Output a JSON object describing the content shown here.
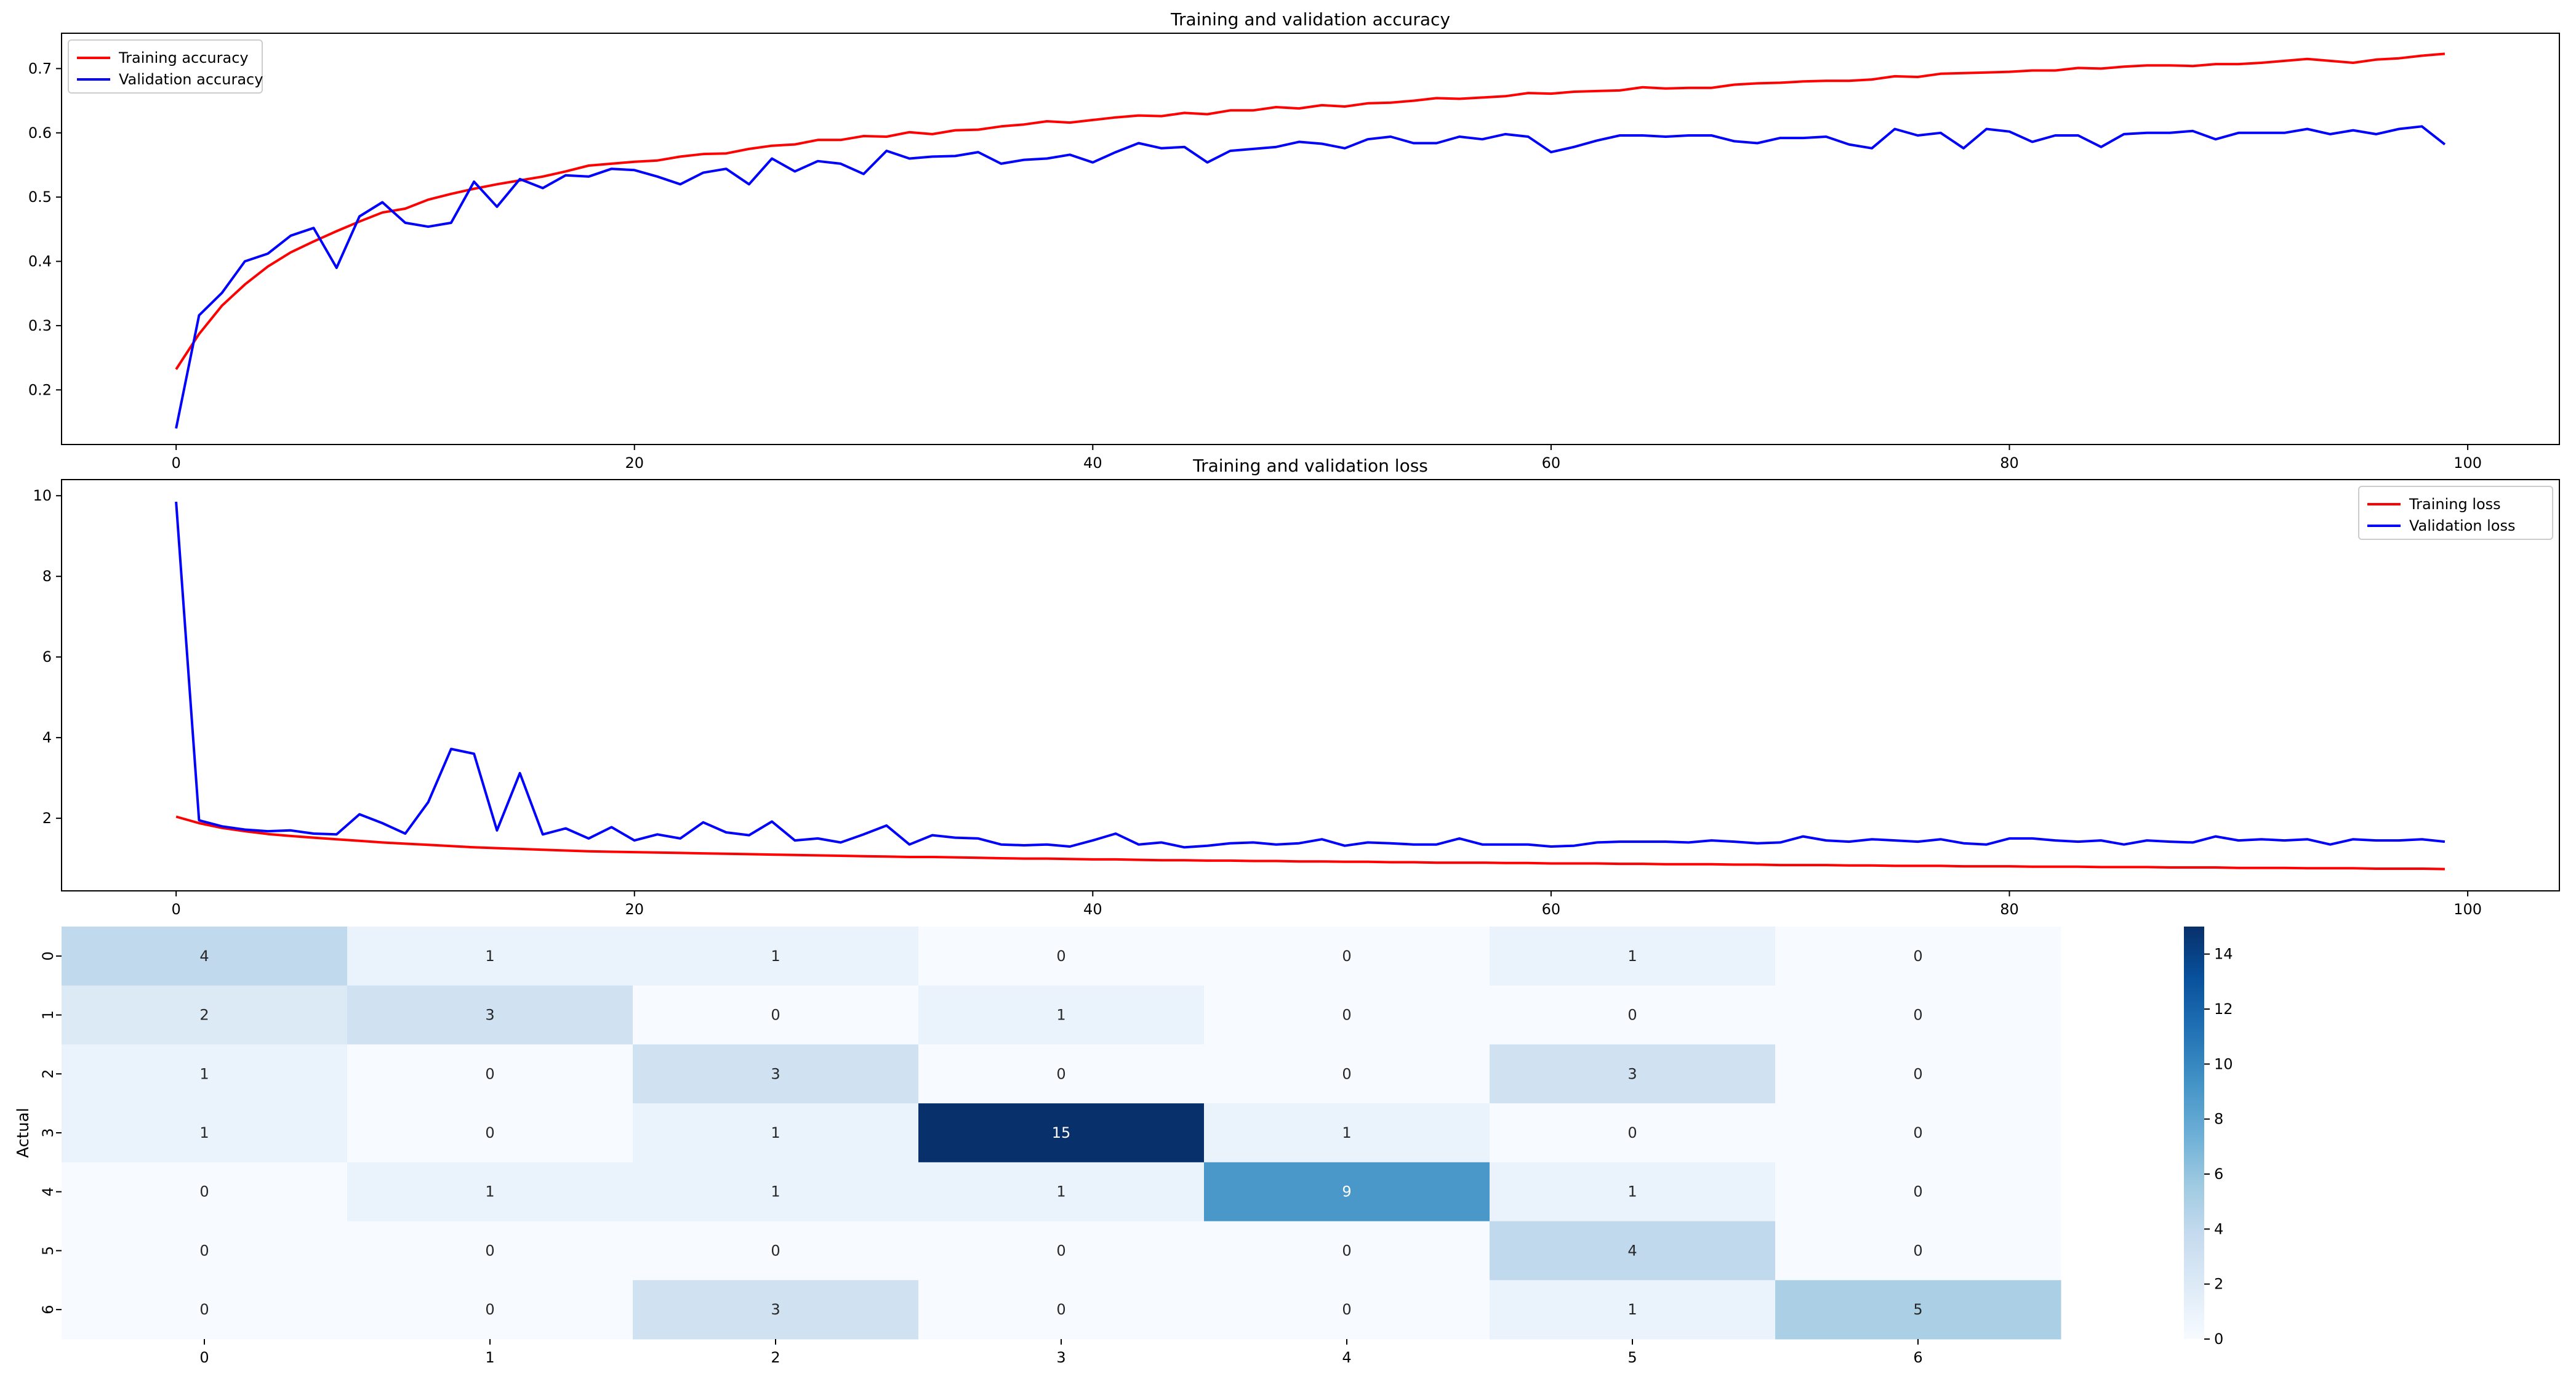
{
  "chart_data": [
    {
      "type": "line",
      "title": "Training and validation accuracy",
      "xlim": [
        -5,
        104
      ],
      "ylim": [
        0.115,
        0.755
      ],
      "xticks": [
        0,
        20,
        40,
        60,
        80,
        100
      ],
      "yticks": [
        0.2,
        0.3,
        0.4,
        0.5,
        0.6,
        0.7
      ],
      "xtick_labels": [
        "0",
        "20",
        "40",
        "60",
        "80",
        "100"
      ],
      "ytick_labels": [
        "0.2",
        "0.3",
        "0.4",
        "0.5",
        "0.6",
        "0.7"
      ],
      "legend_position": "top-left",
      "series": [
        {
          "name": "Training accuracy",
          "color": "#ff0000",
          "values": [
            0.232,
            0.287,
            0.331,
            0.364,
            0.392,
            0.414,
            0.431,
            0.447,
            0.462,
            0.476,
            0.482,
            0.496,
            0.505,
            0.513,
            0.52,
            0.526,
            0.532,
            0.54,
            0.549,
            0.552,
            0.555,
            0.557,
            0.563,
            0.567,
            0.568,
            0.575,
            0.58,
            0.582,
            0.589,
            0.589,
            0.595,
            0.594,
            0.601,
            0.598,
            0.604,
            0.605,
            0.61,
            0.613,
            0.618,
            0.616,
            0.62,
            0.624,
            0.627,
            0.626,
            0.631,
            0.629,
            0.635,
            0.635,
            0.64,
            0.638,
            0.643,
            0.641,
            0.646,
            0.647,
            0.65,
            0.654,
            0.653,
            0.655,
            0.657,
            0.662,
            0.661,
            0.664,
            0.665,
            0.666,
            0.671,
            0.669,
            0.67,
            0.67,
            0.675,
            0.677,
            0.678,
            0.68,
            0.681,
            0.681,
            0.683,
            0.688,
            0.687,
            0.692,
            0.693,
            0.694,
            0.695,
            0.697,
            0.697,
            0.701,
            0.7,
            0.703,
            0.705,
            0.705,
            0.704,
            0.707,
            0.707,
            0.709,
            0.712,
            0.715,
            0.712,
            0.709,
            0.714,
            0.716,
            0.72,
            0.723
          ]
        },
        {
          "name": "Validation accuracy",
          "color": "#0000ff",
          "values": [
            0.14,
            0.316,
            0.351,
            0.4,
            0.412,
            0.44,
            0.452,
            0.39,
            0.47,
            0.492,
            0.46,
            0.454,
            0.46,
            0.524,
            0.485,
            0.528,
            0.514,
            0.534,
            0.532,
            0.544,
            0.542,
            0.532,
            0.52,
            0.538,
            0.544,
            0.52,
            0.56,
            0.54,
            0.556,
            0.552,
            0.536,
            0.572,
            0.56,
            0.563,
            0.564,
            0.57,
            0.552,
            0.558,
            0.56,
            0.566,
            0.554,
            0.57,
            0.584,
            0.576,
            0.578,
            0.554,
            0.572,
            0.575,
            0.578,
            0.586,
            0.583,
            0.576,
            0.59,
            0.594,
            0.584,
            0.584,
            0.594,
            0.59,
            0.598,
            0.594,
            0.57,
            0.578,
            0.588,
            0.596,
            0.596,
            0.594,
            0.596,
            0.596,
            0.587,
            0.584,
            0.592,
            0.592,
            0.594,
            0.582,
            0.576,
            0.606,
            0.596,
            0.6,
            0.576,
            0.606,
            0.602,
            0.586,
            0.596,
            0.596,
            0.578,
            0.598,
            0.6,
            0.6,
            0.603,
            0.59,
            0.6,
            0.6,
            0.6,
            0.606,
            0.598,
            0.604,
            0.598,
            0.606,
            0.61,
            0.582
          ]
        }
      ]
    },
    {
      "type": "line",
      "title": "Training and validation loss",
      "xlim": [
        -5,
        104
      ],
      "ylim": [
        0.2,
        10.4
      ],
      "xticks": [
        0,
        20,
        40,
        60,
        80,
        100
      ],
      "yticks": [
        2,
        4,
        6,
        8,
        10
      ],
      "xtick_labels": [
        "0",
        "20",
        "40",
        "60",
        "80",
        "100"
      ],
      "ytick_labels": [
        "2",
        "4",
        "6",
        "8",
        "10"
      ],
      "legend_position": "top-right",
      "series": [
        {
          "name": "Training loss",
          "color": "#ff0000",
          "values": [
            2.04,
            1.88,
            1.76,
            1.68,
            1.61,
            1.56,
            1.52,
            1.48,
            1.44,
            1.4,
            1.37,
            1.34,
            1.31,
            1.28,
            1.26,
            1.24,
            1.22,
            1.2,
            1.18,
            1.17,
            1.16,
            1.15,
            1.14,
            1.13,
            1.12,
            1.11,
            1.1,
            1.09,
            1.08,
            1.07,
            1.06,
            1.05,
            1.04,
            1.04,
            1.03,
            1.02,
            1.01,
            1.0,
            1.0,
            0.99,
            0.98,
            0.98,
            0.97,
            0.96,
            0.96,
            0.95,
            0.95,
            0.94,
            0.94,
            0.93,
            0.93,
            0.92,
            0.92,
            0.91,
            0.91,
            0.9,
            0.9,
            0.9,
            0.89,
            0.89,
            0.88,
            0.88,
            0.88,
            0.87,
            0.87,
            0.86,
            0.86,
            0.86,
            0.85,
            0.85,
            0.84,
            0.84,
            0.84,
            0.83,
            0.83,
            0.82,
            0.82,
            0.82,
            0.81,
            0.81,
            0.81,
            0.8,
            0.8,
            0.8,
            0.79,
            0.79,
            0.79,
            0.78,
            0.78,
            0.78,
            0.77,
            0.77,
            0.77,
            0.76,
            0.76,
            0.76,
            0.75,
            0.75,
            0.75,
            0.74
          ]
        },
        {
          "name": "Validation loss",
          "color": "#0000ff",
          "values": [
            9.85,
            1.95,
            1.8,
            1.72,
            1.68,
            1.7,
            1.62,
            1.6,
            2.1,
            1.88,
            1.62,
            2.4,
            3.72,
            3.6,
            1.7,
            3.12,
            1.6,
            1.75,
            1.5,
            1.78,
            1.45,
            1.6,
            1.5,
            1.9,
            1.65,
            1.58,
            1.92,
            1.45,
            1.5,
            1.4,
            1.6,
            1.82,
            1.35,
            1.58,
            1.52,
            1.5,
            1.35,
            1.33,
            1.35,
            1.3,
            1.45,
            1.62,
            1.35,
            1.4,
            1.28,
            1.32,
            1.38,
            1.4,
            1.35,
            1.38,
            1.48,
            1.32,
            1.4,
            1.38,
            1.35,
            1.35,
            1.5,
            1.35,
            1.35,
            1.35,
            1.3,
            1.32,
            1.4,
            1.42,
            1.42,
            1.42,
            1.4,
            1.45,
            1.42,
            1.38,
            1.4,
            1.55,
            1.45,
            1.42,
            1.48,
            1.45,
            1.42,
            1.48,
            1.38,
            1.35,
            1.5,
            1.5,
            1.45,
            1.42,
            1.45,
            1.35,
            1.45,
            1.42,
            1.4,
            1.55,
            1.45,
            1.48,
            1.45,
            1.48,
            1.35,
            1.48,
            1.45,
            1.45,
            1.48,
            1.42
          ]
        }
      ]
    },
    {
      "type": "heatmap",
      "ylabel": "Actual",
      "x_labels": [
        "0",
        "1",
        "2",
        "3",
        "4",
        "5",
        "6"
      ],
      "y_labels": [
        "0",
        "1",
        "2",
        "3",
        "4",
        "5",
        "6"
      ],
      "matrix": [
        [
          4,
          1,
          1,
          0,
          0,
          1,
          0
        ],
        [
          2,
          3,
          0,
          1,
          0,
          0,
          0
        ],
        [
          1,
          0,
          3,
          0,
          0,
          3,
          0
        ],
        [
          1,
          0,
          1,
          15,
          1,
          0,
          0
        ],
        [
          0,
          1,
          1,
          1,
          9,
          1,
          0
        ],
        [
          0,
          0,
          0,
          0,
          0,
          4,
          0
        ],
        [
          0,
          0,
          3,
          0,
          0,
          1,
          5
        ]
      ],
      "colormap": "Blues",
      "vmin": 0,
      "vmax": 15,
      "colorbar_ticks": [
        0,
        2,
        4,
        6,
        8,
        10,
        12,
        14
      ],
      "colorbar_tick_labels": [
        "0",
        "2",
        "4",
        "6",
        "8",
        "10",
        "12",
        "14"
      ]
    }
  ]
}
